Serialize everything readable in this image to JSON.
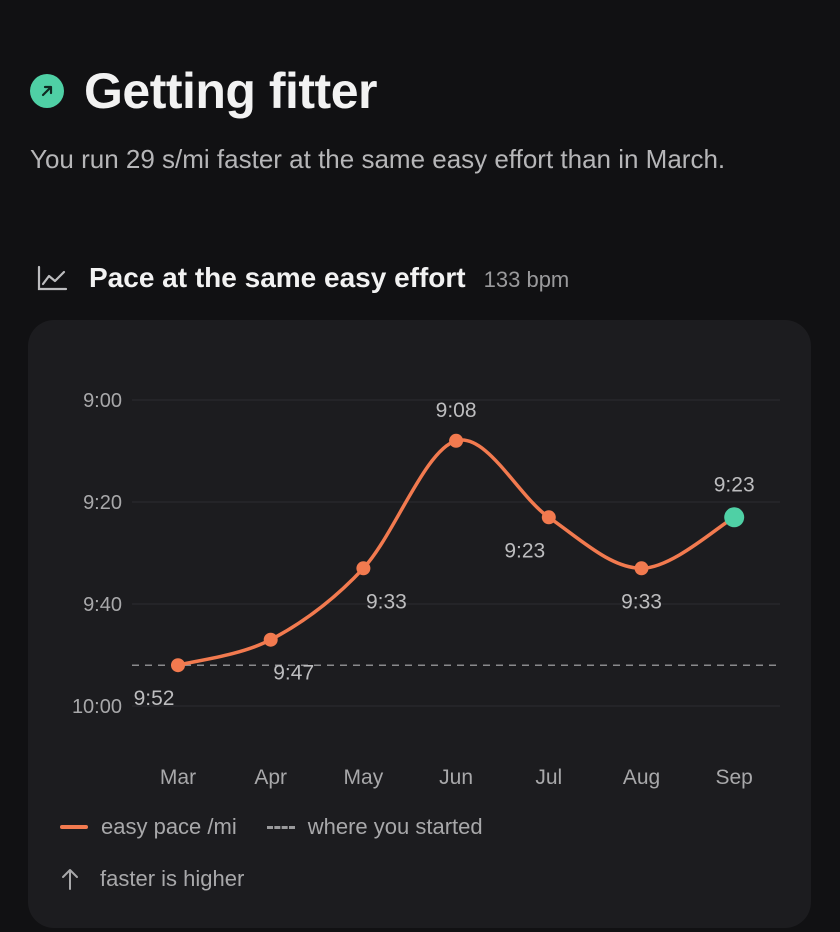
{
  "header": {
    "title": "Getting fitter",
    "subtitle": "You run 29 s/mi faster at the same easy effort than in March.",
    "badge_icon": "arrow-up-right-icon",
    "badge_color": "#4fd0a5"
  },
  "section": {
    "icon": "line-chart-icon",
    "title": "Pace at the same easy effort",
    "meta": "133 bpm"
  },
  "legend": {
    "series_label": "easy pace /mi",
    "baseline_label": "where you started",
    "note_icon": "arrow-up-icon",
    "note": "faster is higher"
  },
  "colors": {
    "line": "#f27a4f",
    "latest_point": "#4fd0a5",
    "grid": "#2c2c30",
    "baseline": "#8a8a8c",
    "tick_text": "#a8a8aa",
    "label_text": "#bdbdbf"
  },
  "chart_data": {
    "type": "line",
    "categories": [
      "Mar",
      "Apr",
      "May",
      "Jun",
      "Jul",
      "Aug",
      "Sep"
    ],
    "series": [
      {
        "name": "easy pace /mi",
        "values_seconds": [
          592,
          587,
          573,
          548,
          563,
          573,
          563
        ],
        "labels": [
          "9:52",
          "9:47",
          "9:33",
          "9:08",
          "9:23",
          "9:33",
          "9:23"
        ]
      }
    ],
    "baseline": {
      "name": "where you started",
      "value_seconds": 592
    },
    "y_ticks_seconds": [
      540,
      560,
      580,
      600
    ],
    "y_tick_labels": [
      "9:00",
      "9:20",
      "9:40",
      "10:00"
    ],
    "ylim_seconds": [
      540,
      600
    ],
    "y_inverted": true,
    "grid": true,
    "legend_position": "bottom"
  }
}
